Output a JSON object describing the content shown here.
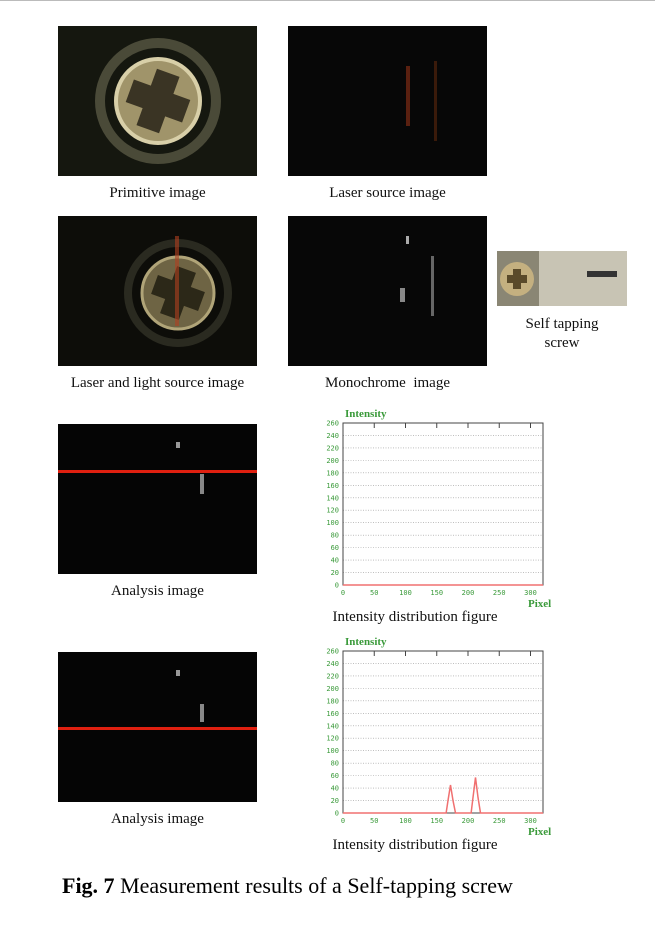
{
  "panels": [
    {
      "caption": "Primitive image"
    },
    {
      "caption": "Laser source image"
    },
    {
      "caption": "Laser and light source image"
    },
    {
      "caption": "Monochrome  image"
    },
    {
      "caption": "Self tapping screw"
    },
    {
      "caption": "Analysis image"
    },
    {
      "caption": "Analysis image"
    }
  ],
  "chart_data": [
    {
      "type": "line",
      "caption": "Intensity distribution figure",
      "ylabel": "Intensity",
      "xlabel": "Pixel",
      "x": [
        0,
        320
      ],
      "values": [
        0,
        0
      ],
      "color": "#f07070",
      "xlim": [
        0,
        320
      ],
      "ylim": [
        0,
        260
      ],
      "xticks": [
        0,
        50,
        100,
        150,
        200,
        250,
        300
      ],
      "yticks": [
        0,
        20,
        40,
        60,
        80,
        100,
        120,
        140,
        160,
        180,
        200,
        220,
        240,
        260
      ],
      "grid": true
    },
    {
      "type": "line",
      "caption": "Intensity distribution figure",
      "ylabel": "Intensity",
      "xlabel": "Pixel",
      "x": [
        0,
        165,
        168,
        172,
        176,
        180,
        205,
        208,
        212,
        216,
        220,
        320
      ],
      "values": [
        0,
        0,
        20,
        45,
        20,
        0,
        0,
        25,
        57,
        25,
        0,
        0
      ],
      "color": "#f07070",
      "xlim": [
        0,
        320
      ],
      "ylim": [
        0,
        260
      ],
      "xticks": [
        0,
        50,
        100,
        150,
        200,
        250,
        300
      ],
      "yticks": [
        0,
        20,
        40,
        60,
        80,
        100,
        120,
        140,
        160,
        180,
        200,
        220,
        240,
        260
      ],
      "grid": true
    }
  ],
  "figure_caption": {
    "label": "Fig. 7",
    "text": "Measurement results of a Self-tapping screw"
  }
}
